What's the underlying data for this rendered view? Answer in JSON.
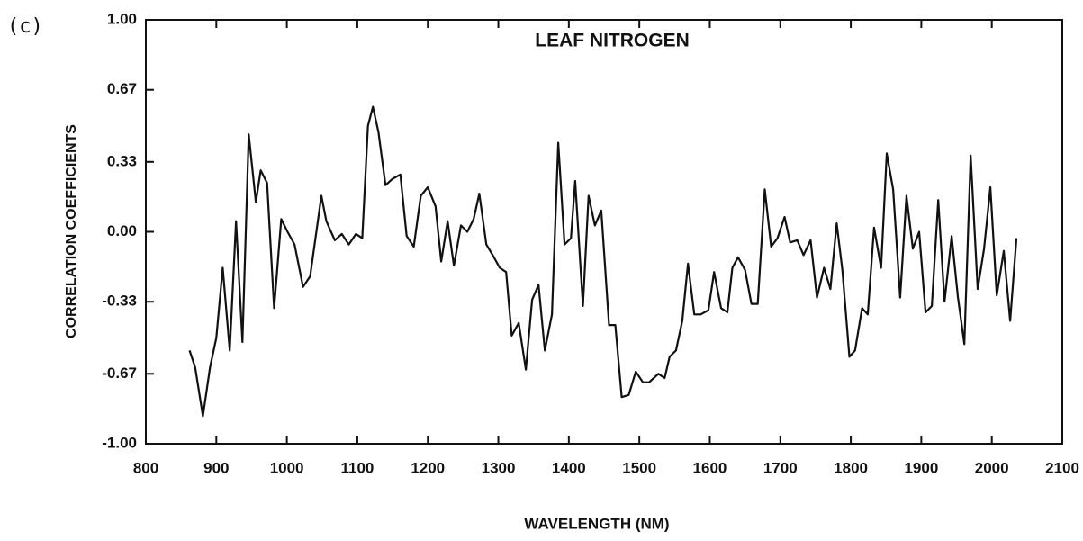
{
  "panel_label": "(c)",
  "chart_data": {
    "type": "line",
    "title": "LEAF NITROGEN",
    "x_label": "WAVELENGTH (NM)",
    "y_label": "CORRELATION COEFFICIENTS",
    "xlim": [
      800,
      2100
    ],
    "xticks": [
      800,
      900,
      1000,
      1100,
      1200,
      1300,
      1400,
      1500,
      1600,
      1700,
      1800,
      1900,
      2000,
      2100
    ],
    "ylim": [
      -1,
      1
    ],
    "yticks": [
      {
        "value": -1,
        "label": "-1.00"
      },
      {
        "value": -0.67,
        "label": "-0.67"
      },
      {
        "value": -0.33,
        "label": "-0.33"
      },
      {
        "value": 0,
        "label": "0.00"
      },
      {
        "value": 0.33,
        "label": "0.33"
      },
      {
        "value": 0.67,
        "label": "0.67"
      },
      {
        "value": 1,
        "label": "1.00"
      }
    ],
    "grid": false,
    "series": [
      {
        "color": "#111111",
        "x": [
          862,
          870,
          881,
          891,
          900,
          909,
          919,
          928,
          937,
          946,
          956,
          963,
          972,
          982,
          992,
          1001,
          1011,
          1023,
          1033,
          1049,
          1056,
          1068,
          1078,
          1088,
          1098,
          1107,
          1115,
          1122,
          1130,
          1140,
          1150,
          1161,
          1170,
          1180,
          1190,
          1200,
          1211,
          1219,
          1228,
          1237,
          1247,
          1256,
          1265,
          1273,
          1283,
          1292,
          1302,
          1311,
          1319,
          1329,
          1339,
          1348,
          1357,
          1366,
          1376,
          1385,
          1394,
          1403,
          1409,
          1420,
          1428,
          1437,
          1446,
          1457,
          1466,
          1475,
          1485,
          1495,
          1505,
          1514,
          1527,
          1536,
          1543,
          1552,
          1561,
          1569,
          1578,
          1587,
          1598,
          1606,
          1616,
          1625,
          1632,
          1640,
          1650,
          1659,
          1668,
          1678,
          1687,
          1696,
          1706,
          1714,
          1724,
          1733,
          1743,
          1752,
          1762,
          1771,
          1780,
          1788,
          1798,
          1806,
          1816,
          1824,
          1833,
          1843,
          1851,
          1860,
          1870,
          1879,
          1888,
          1897,
          1906,
          1915,
          1924,
          1933,
          1943,
          1952,
          1961,
          1970,
          1980,
          1989,
          1998,
          2007,
          2017,
          2026,
          2035
        ],
        "values": [
          -0.56,
          -0.64,
          -0.87,
          -0.64,
          -0.5,
          -0.17,
          -0.56,
          0.05,
          -0.52,
          0.46,
          0.14,
          0.29,
          0.23,
          -0.36,
          0.06,
          0,
          -0.06,
          -0.26,
          -0.21,
          0.17,
          0.05,
          -0.04,
          -0.01,
          -0.06,
          -0.01,
          -0.03,
          0.5,
          0.59,
          0.47,
          0.22,
          0.25,
          0.27,
          -0.02,
          -0.07,
          0.17,
          0.21,
          0.12,
          -0.14,
          0.05,
          -0.16,
          0.03,
          0,
          0.06,
          0.18,
          -0.06,
          -0.11,
          -0.17,
          -0.19,
          -0.49,
          -0.43,
          -0.65,
          -0.32,
          -0.25,
          -0.56,
          -0.39,
          0.42,
          -0.06,
          -0.03,
          0.24,
          -0.35,
          0.17,
          0.03,
          0.1,
          -0.44,
          -0.44,
          -0.78,
          -0.77,
          -0.66,
          -0.71,
          -0.71,
          -0.67,
          -0.69,
          -0.59,
          -0.56,
          -0.42,
          -0.15,
          -0.39,
          -0.39,
          -0.37,
          -0.19,
          -0.36,
          -0.38,
          -0.17,
          -0.12,
          -0.18,
          -0.34,
          -0.34,
          0.2,
          -0.07,
          -0.03,
          0.07,
          -0.05,
          -0.04,
          -0.11,
          -0.04,
          -0.31,
          -0.17,
          -0.27,
          0.04,
          -0.18,
          -0.59,
          -0.56,
          -0.36,
          -0.39,
          0.02,
          -0.17,
          0.37,
          0.2,
          -0.31,
          0.17,
          -0.08,
          0,
          -0.38,
          -0.35,
          0.15,
          -0.33,
          -0.02,
          -0.31,
          -0.53,
          0.36,
          -0.27,
          -0.08,
          0.21,
          -0.3,
          -0.09,
          -0.42,
          -0.03
        ]
      }
    ]
  }
}
